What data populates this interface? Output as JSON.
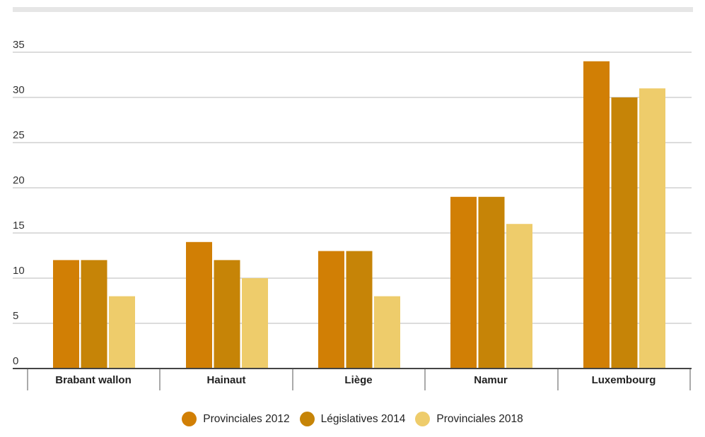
{
  "chart_data": {
    "type": "bar",
    "categories": [
      "Brabant wallon",
      "Hainaut",
      "Liège",
      "Namur",
      "Luxembourg"
    ],
    "series": [
      {
        "name": "Provinciales 2012",
        "color": "#d17f05",
        "values": [
          12,
          14,
          13,
          19,
          34
        ]
      },
      {
        "name": "Législatives 2014",
        "color": "#c68407",
        "values": [
          12,
          12,
          13,
          19,
          30
        ]
      },
      {
        "name": "Provinciales 2018",
        "color": "#eecc6b",
        "values": [
          8,
          10,
          8,
          16,
          31
        ]
      }
    ],
    "yticks": [
      0,
      5,
      10,
      15,
      20,
      25,
      30,
      35
    ],
    "ylim": [
      0,
      35
    ],
    "grid": true,
    "legend_position": "bottom"
  }
}
